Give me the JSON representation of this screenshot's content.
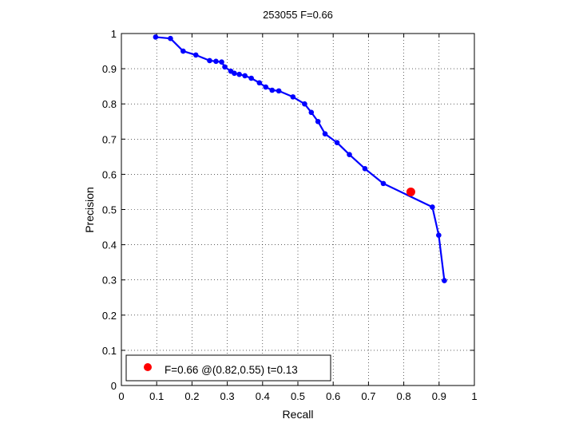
{
  "chart_data": {
    "type": "line",
    "title": "253055 F=0.66",
    "xlabel": "Recall",
    "ylabel": "Precision",
    "xlim": [
      0,
      1
    ],
    "ylim": [
      0,
      1
    ],
    "grid": true,
    "legend_position": "bottom-left",
    "xticks": [
      "0",
      "0.1",
      "0.2",
      "0.3",
      "0.4",
      "0.5",
      "0.6",
      "0.7",
      "0.8",
      "0.9",
      "1"
    ],
    "yticks": [
      "0",
      "0.1",
      "0.2",
      "0.3",
      "0.4",
      "0.5",
      "0.6",
      "0.7",
      "0.8",
      "0.9",
      "1"
    ],
    "series": [
      {
        "color": "#0000ff",
        "points": [
          [
            0.097,
            0.99
          ],
          [
            0.139,
            0.986
          ],
          [
            0.175,
            0.95
          ],
          [
            0.211,
            0.939
          ],
          [
            0.25,
            0.923
          ],
          [
            0.268,
            0.921
          ],
          [
            0.284,
            0.919
          ],
          [
            0.293,
            0.905
          ],
          [
            0.31,
            0.893
          ],
          [
            0.32,
            0.887
          ],
          [
            0.334,
            0.884
          ],
          [
            0.35,
            0.88
          ],
          [
            0.368,
            0.873
          ],
          [
            0.391,
            0.86
          ],
          [
            0.409,
            0.848
          ],
          [
            0.427,
            0.839
          ],
          [
            0.446,
            0.837
          ],
          [
            0.486,
            0.82
          ],
          [
            0.519,
            0.8
          ],
          [
            0.538,
            0.776
          ],
          [
            0.557,
            0.75
          ],
          [
            0.577,
            0.715
          ],
          [
            0.611,
            0.69
          ],
          [
            0.646,
            0.656
          ],
          [
            0.69,
            0.616
          ],
          [
            0.742,
            0.574
          ],
          [
            0.881,
            0.507
          ],
          [
            0.899,
            0.427
          ],
          [
            0.915,
            0.298
          ]
        ]
      }
    ],
    "highlight": {
      "x": 0.82,
      "y": 0.55,
      "color": "#ff0000"
    },
    "legend": {
      "label": "F=0.66 @(0.82,0.55) t=0.13"
    }
  }
}
